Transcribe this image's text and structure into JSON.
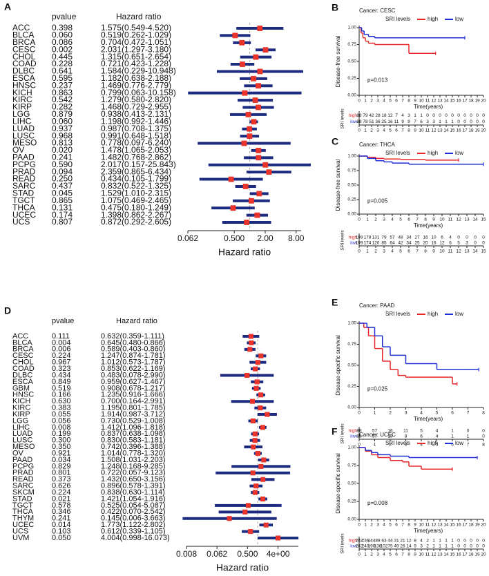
{
  "chart_data": [
    {
      "type": "forest",
      "panel": "A",
      "columns": [
        "pvalue",
        "Hazard ratio"
      ],
      "categories": [
        "ACC",
        "BLCA",
        "BRCA",
        "CESC",
        "CHOL",
        "COAD",
        "DLBC",
        "ESCA",
        "HNSC",
        "KICH",
        "KIRC",
        "KIRP",
        "LGG",
        "LIHC",
        "LUAD",
        "LUSC",
        "MESO",
        "OV",
        "PAAD",
        "PCPG",
        "PRAD",
        "READ",
        "SARC",
        "STAD",
        "TGCT",
        "THCA",
        "UCEC",
        "UCS"
      ],
      "pvalues": [
        "0.398",
        "0.060",
        "0.086",
        "0.002",
        "0.445",
        "0.228",
        "0.641",
        "0.595",
        "0.237",
        "0.863",
        "0.542",
        "0.282",
        "0.879",
        "0.060",
        "0.937",
        "0.968",
        "0.813",
        "0.020",
        "0.241",
        "0.590",
        "0.094",
        "0.250",
        "0.437",
        "0.045",
        "0.865",
        "0.131",
        "0.174",
        "0.807"
      ],
      "values": [
        1.575,
        0.519,
        0.704,
        2.031,
        1.315,
        0.721,
        1.584,
        1.182,
        1.469,
        0.799,
        1.279,
        1.468,
        0.938,
        1.198,
        0.987,
        0.991,
        0.778,
        1.478,
        1.482,
        2.017,
        2.359,
        0.434,
        0.832,
        1.529,
        1.075,
        0.475,
        1.398,
        0.872
      ],
      "lower": [
        0.549,
        0.262,
        0.472,
        1.297,
        0.651,
        0.423,
        0.229,
        0.638,
        0.776,
        0.063,
        0.58,
        0.729,
        0.413,
        0.992,
        0.708,
        0.648,
        0.097,
        1.065,
        0.768,
        0.157,
        0.865,
        0.105,
        0.522,
        1.01,
        0.469,
        0.18,
        0.862,
        0.292
      ],
      "upper": [
        4.52,
        1.029,
        1.051,
        3.18,
        2.654,
        1.228,
        10.948,
        2.188,
        2.779,
        10.158,
        2.82,
        2.955,
        2.131,
        1.446,
        1.375,
        1.518,
        6.24,
        2.053,
        2.862,
        25.843,
        6.434,
        1.799,
        1.325,
        2.315,
        2.465,
        1.249,
        2.267,
        2.605
      ],
      "value_labels": [
        "1.575(0.549-4.520)",
        "0.519(0.262-1.029)",
        "0.704(0.472-1.051)",
        "2.031(1.297-3.180)",
        "1.315(0.651-2.654)",
        "0.721(0.423-1.228)",
        "1.584(0.229-10.948)",
        "1.182(0.638-2.188)",
        "1.469(0.776-2.779)",
        "0.799(0.063-10.158)",
        "1.279(0.580-2.820)",
        "1.468(0.729-2.955)",
        "0.938(0.413-2.131)",
        "1.198(0.992-1.446)",
        "0.987(0.708-1.375)",
        "0.991(0.648-1.518)",
        "0.778(0.097-6.240)",
        "1.478(1.065-2.053)",
        "1.482(0.768-2.862)",
        "2.017(0.157-25.843)",
        "2.359(0.865-6.434)",
        "0.434(0.105-1.799)",
        "0.832(0.522-1.325)",
        "1.529(1.010-2.315)",
        "1.075(0.469-2.465)",
        "0.475(0.180-1.249)",
        "1.398(0.862-2.267)",
        "0.872(0.292-2.605)"
      ],
      "xlabel": "Hazard ratio",
      "log_x": true,
      "xlim": [
        0.0625,
        10
      ],
      "xticks": [
        {
          "value": 0.0625,
          "label": "0.062"
        },
        {
          "value": 0.5,
          "label": "0.500"
        },
        {
          "value": 2,
          "label": "2.00"
        },
        {
          "value": 8,
          "label": "8.00"
        }
      ],
      "reference": 1,
      "color": "#1c2a80",
      "point_color": "#e8342a"
    },
    {
      "type": "km",
      "panel": "B",
      "title": "Cancer: CESC",
      "legend_title": "SRI levels",
      "series": [
        {
          "name": "high",
          "color": "#e8262a",
          "x": [
            0,
            0.3,
            0.6,
            1,
            1.5,
            2.5,
            8,
            12.3
          ],
          "values": [
            1,
            0.92,
            0.85,
            0.8,
            0.77,
            0.75,
            0.62,
            0.62
          ],
          "risk": [
            88,
            79,
            42,
            28,
            18,
            12,
            7,
            4,
            3,
            1,
            1,
            0,
            0,
            0,
            0,
            0,
            0,
            0,
            0,
            0,
            0
          ]
        },
        {
          "name": "low",
          "color": "#1f2fd6",
          "x": [
            0,
            0.4,
            0.8,
            1.5,
            2.5,
            17
          ],
          "values": [
            1,
            0.95,
            0.9,
            0.87,
            0.85,
            0.85
          ],
          "risk": [
            88,
            78,
            51,
            36,
            25,
            16,
            11,
            9,
            9,
            7,
            6,
            3,
            3,
            1,
            1,
            1,
            0,
            0,
            0,
            0,
            0
          ]
        }
      ],
      "xlabel": "Time(years)",
      "ylabel": "Disease-free survival",
      "annotation": "p=0.013",
      "risk_label": "SRI levels",
      "xlim": [
        0,
        20
      ],
      "xticks": [
        0,
        1,
        2,
        3,
        4,
        5,
        6,
        7,
        8,
        9,
        10,
        11,
        12,
        13,
        14,
        15,
        16,
        17,
        18,
        19,
        20
      ],
      "ylim": [
        0,
        1
      ],
      "yticks": [
        {
          "value": 0,
          "label": "0.00"
        },
        {
          "value": 0.25,
          "label": "0.25"
        },
        {
          "value": 0.5,
          "label": "0.50"
        },
        {
          "value": 0.75,
          "label": "0.75"
        },
        {
          "value": 1,
          "label": "1.00"
        }
      ]
    },
    {
      "type": "km",
      "panel": "C",
      "title": "Cancer: THCA",
      "legend_title": "SRI levels",
      "series": [
        {
          "name": "high",
          "color": "#e8262a",
          "x": [
            0,
            1,
            2,
            3,
            5,
            8,
            12
          ],
          "values": [
            1,
            0.98,
            0.96,
            0.95,
            0.94,
            0.93,
            0.93
          ],
          "risk": [
            199,
            178,
            131,
            79,
            57,
            48,
            34,
            27,
            16,
            10,
            6,
            4,
            0,
            0,
            0,
            0
          ]
        },
        {
          "name": "low",
          "color": "#1f2fd6",
          "x": [
            0,
            1,
            2,
            3,
            4,
            6,
            15
          ],
          "values": [
            1,
            0.96,
            0.92,
            0.9,
            0.88,
            0.86,
            0.86
          ],
          "risk": [
            199,
            174,
            120,
            85,
            64,
            42,
            34,
            25,
            20,
            16,
            12,
            6,
            5,
            3,
            0,
            0
          ]
        }
      ],
      "xlabel": "Time(years)",
      "ylabel": "Disease-free survival",
      "annotation": "p=0.005",
      "risk_label": "SRI levels",
      "xlim": [
        0,
        15
      ],
      "xticks": [
        0,
        1,
        2,
        3,
        4,
        5,
        6,
        7,
        8,
        9,
        10,
        11,
        12,
        13,
        14,
        15
      ],
      "ylim": [
        0,
        1
      ],
      "yticks": [
        {
          "value": 0,
          "label": "0.00"
        },
        {
          "value": 0.25,
          "label": "0.25"
        },
        {
          "value": 0.5,
          "label": "0.50"
        },
        {
          "value": 0.75,
          "label": "0.75"
        },
        {
          "value": 1,
          "label": "1.00"
        }
      ]
    },
    {
      "type": "forest",
      "panel": "D",
      "columns": [
        "pvalue",
        "Hazard ratio"
      ],
      "categories": [
        "ACC",
        "BLCA",
        "BRCA",
        "CESC",
        "CHOL",
        "COAD",
        "DLBC",
        "ESCA",
        "GBM",
        "HNSC",
        "KICH",
        "KIRC",
        "KIRP",
        "LGG",
        "LIHC",
        "LUAD",
        "LUSC",
        "MESO",
        "OV",
        "PAAD",
        "PCPG",
        "PRAD",
        "READ",
        "SARC",
        "SKCM",
        "STAD",
        "TGCT",
        "THCA",
        "THYM",
        "UCEC",
        "UCS",
        "UVM"
      ],
      "pvalues": [
        "0.111",
        "0.004",
        "0.006",
        "0.224",
        "0.967",
        "0.323",
        "0.434",
        "0.849",
        "0.519",
        "0.166",
        "0.630",
        "0.383",
        "0.055",
        "0.056",
        "0.008",
        "0.199",
        "0.300",
        "0.350",
        "0.921",
        "0.034",
        "0.829",
        "0.801",
        "0.373",
        "0.626",
        "0.224",
        "0.021",
        "0.578",
        "0.346",
        "0.241",
        "0.014",
        "0.103",
        "0.050"
      ],
      "values": [
        0.632,
        0.645,
        0.589,
        1.247,
        1.012,
        0.853,
        0.483,
        0.959,
        0.908,
        1.235,
        0.7,
        1.195,
        1.914,
        0.73,
        1.412,
        0.837,
        0.83,
        0.742,
        1.014,
        1.508,
        1.248,
        0.722,
        1.432,
        0.896,
        0.838,
        1.421,
        0.525,
        0.422,
        0.145,
        1.773,
        0.612,
        4.004
      ],
      "lower": [
        0.359,
        0.48,
        0.403,
        0.874,
        0.573,
        0.622,
        0.078,
        0.627,
        0.678,
        0.916,
        0.164,
        0.801,
        0.987,
        0.529,
        1.096,
        0.638,
        0.583,
        0.396,
        0.778,
        1.031,
        0.168,
        0.057,
        0.65,
        0.578,
        0.63,
        1.054,
        0.054,
        0.07,
        0.006,
        1.122,
        0.339,
        0.998
      ],
      "upper": [
        1.111,
        0.866,
        0.86,
        1.781,
        1.787,
        1.169,
        2.99,
        1.467,
        1.217,
        1.666,
        2.991,
        1.785,
        3.712,
        1.008,
        1.818,
        1.098,
        1.181,
        1.388,
        1.32,
        2.203,
        9.285,
        9.123,
        3.156,
        1.391,
        1.114,
        1.916,
        5.087,
        2.542,
        3.663,
        2.802,
        1.105,
        16.073
      ],
      "value_labels": [
        "0.632(0.359-1.111)",
        "0.645(0.480-0.866)",
        "0.589(0.403-0.860)",
        "1.247(0.874-1.781)",
        "1.012(0.573-1.787)",
        "0.853(0.622-1.169)",
        "0.483(0.078-2.990)",
        "0.959(0.627-1.467)",
        "0.908(0.678-1.217)",
        "1.235(0.916-1.666)",
        "0.700(0.164-2.991)",
        "1.195(0.801-1.785)",
        "1.914(0.987-3.712)",
        "0.730(0.529-1.008)",
        "1.412(1.096-1.818)",
        "0.837(0.638-1.098)",
        "0.830(0.583-1.181)",
        "0.742(0.396-1.388)",
        "1.014(0.778-1.320)",
        "1.508(1.031-2.203)",
        "1.248(0.168-9.285)",
        "0.722(0.057-9.123)",
        "1.432(0.650-3.156)",
        "0.896(0.578-1.391)",
        "0.838(0.630-1.114)",
        "1.421(1.054-1.916)",
        "0.525(0.054-5.087)",
        "0.422(0.070-2.542)",
        "0.145(0.006-3.663)",
        "1.773(1.122-2.802)",
        "0.612(0.339-1.105)",
        "4.004(0.998-16.073)"
      ],
      "xlabel": "Hazard ratio",
      "log_x": true,
      "xlim": [
        0.0078125,
        16
      ],
      "xticks": [
        {
          "value": 0.0078125,
          "label": "0.008"
        },
        {
          "value": 0.0625,
          "label": "0.062"
        },
        {
          "value": 0.5,
          "label": "0.500"
        },
        {
          "value": 4,
          "label": "4e+00"
        }
      ],
      "reference": 1,
      "color": "#1c2a80",
      "point_color": "#e8342a"
    },
    {
      "type": "km",
      "panel": "E",
      "title": "Cancer: PAAD",
      "legend_title": "SRI levels",
      "series": [
        {
          "name": "high",
          "color": "#e8262a",
          "x": [
            0,
            0.3,
            0.6,
            1,
            1.5,
            2,
            2.5,
            3,
            4,
            6,
            6.3
          ],
          "values": [
            1,
            0.95,
            0.85,
            0.7,
            0.55,
            0.45,
            0.38,
            0.36,
            0.36,
            0.28,
            0.28
          ],
          "risk": [
            88,
            57,
            16,
            11,
            5,
            4,
            1,
            0,
            0
          ]
        },
        {
          "name": "low",
          "color": "#1f2fd6",
          "x": [
            0,
            0.5,
            1,
            1.5,
            2,
            3,
            5,
            6,
            7,
            7.7
          ],
          "values": [
            1,
            0.95,
            0.85,
            0.72,
            0.62,
            0.52,
            0.45,
            0.45,
            0.45,
            0.45
          ],
          "risk": [
            88,
            57,
            19,
            8,
            6,
            4,
            1,
            1,
            0
          ]
        }
      ],
      "xlabel": "Time(years)",
      "ylabel": "Disease-specific survival",
      "annotation": "p=0.025",
      "risk_label": "SRI levels",
      "xlim": [
        0,
        8
      ],
      "xticks": [
        0,
        1,
        2,
        3,
        4,
        5,
        6,
        7,
        8
      ],
      "ylim": [
        0,
        1
      ],
      "yticks": [
        {
          "value": 0,
          "label": "0.00"
        },
        {
          "value": 0.25,
          "label": "0.25"
        },
        {
          "value": 0.5,
          "label": "0.50"
        },
        {
          "value": 0.75,
          "label": "0.75"
        },
        {
          "value": 1,
          "label": "1.00"
        }
      ]
    },
    {
      "type": "km",
      "panel": "F",
      "title": "Cancer: UCEC",
      "legend_title": "SRI levels",
      "series": [
        {
          "name": "high",
          "color": "#e8262a",
          "x": [
            0,
            1,
            2,
            3,
            5,
            7,
            8,
            10,
            15
          ],
          "values": [
            1,
            0.95,
            0.9,
            0.86,
            0.82,
            0.8,
            0.74,
            0.7,
            0.7
          ],
          "risk": [
            282,
            236,
            144,
            88,
            63,
            44,
            31,
            21,
            12,
            8,
            4,
            2,
            1,
            1,
            1,
            1,
            0,
            0,
            0,
            0,
            0
          ]
        },
        {
          "name": "low",
          "color": "#1f2fd6",
          "x": [
            0,
            1,
            2,
            3,
            5,
            8,
            10,
            19
          ],
          "values": [
            1,
            0.96,
            0.93,
            0.9,
            0.88,
            0.86,
            0.86,
            0.86
          ],
          "risk": [
            282,
            240,
            190,
            138,
            102,
            75,
            49,
            26,
            14,
            9,
            3,
            2,
            1,
            1,
            1,
            1,
            0,
            0,
            0,
            0,
            0
          ]
        }
      ],
      "xlabel": "Time(years)",
      "ylabel": "Disease-specific survival",
      "annotation": "p=0.008",
      "risk_label": "SRI levels",
      "xlim": [
        0,
        20
      ],
      "xticks": [
        0,
        1,
        2,
        3,
        4,
        5,
        6,
        7,
        8,
        9,
        10,
        11,
        12,
        13,
        14,
        15,
        16,
        17,
        18,
        19,
        20
      ],
      "ylim": [
        0,
        1
      ],
      "yticks": [
        {
          "value": 0,
          "label": "0.00"
        },
        {
          "value": 0.25,
          "label": "0.25"
        },
        {
          "value": 0.5,
          "label": "0.50"
        },
        {
          "value": 0.75,
          "label": "0.75"
        },
        {
          "value": 1,
          "label": "1.00"
        }
      ]
    }
  ]
}
